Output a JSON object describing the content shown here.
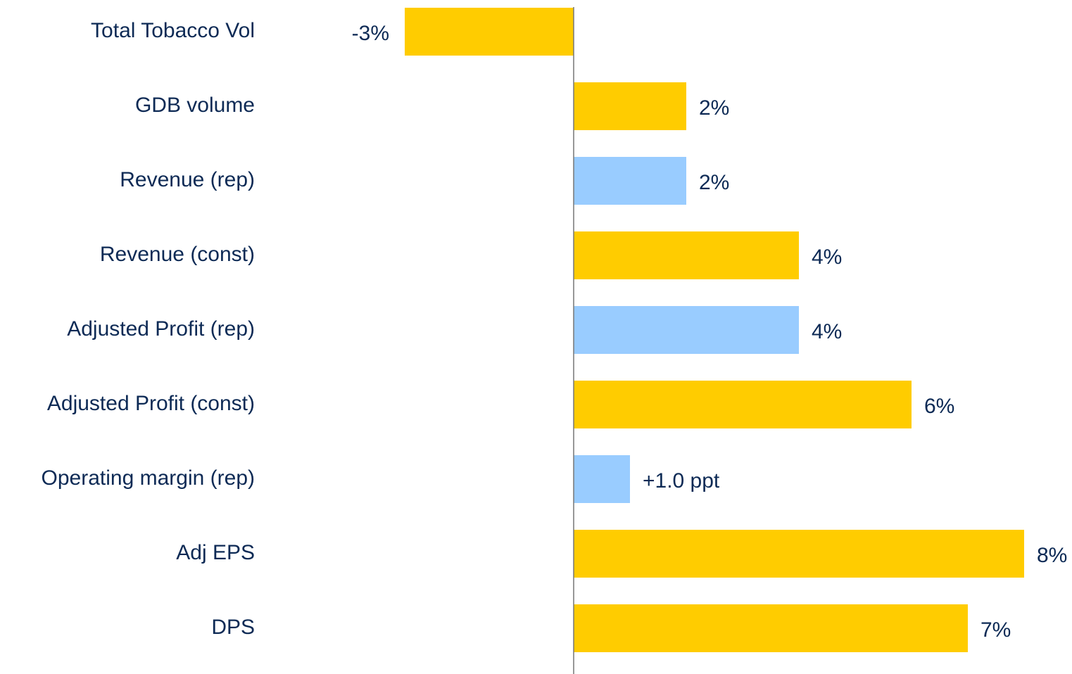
{
  "chart_data": {
    "type": "bar",
    "orientation": "horizontal",
    "categories": [
      "Total Tobacco Vol",
      "GDB volume",
      "Revenue (rep)",
      "Revenue (const)",
      "Adjusted Profit (rep)",
      "Adjusted Profit (const)",
      "Operating margin (rep)",
      "Adj EPS",
      "DPS"
    ],
    "values": [
      -3,
      2,
      2,
      4,
      4,
      6,
      1.0,
      8,
      7
    ],
    "value_labels": [
      "-3%",
      "2%",
      "2%",
      "4%",
      "4%",
      "6%",
      "+1.0 ppt",
      "8%",
      "7%"
    ],
    "colors": [
      "#ffcc00",
      "#ffcc00",
      "#99ccff",
      "#ffcc00",
      "#99ccff",
      "#ffcc00",
      "#99ccff",
      "#ffcc00",
      "#ffcc00"
    ]
  }
}
